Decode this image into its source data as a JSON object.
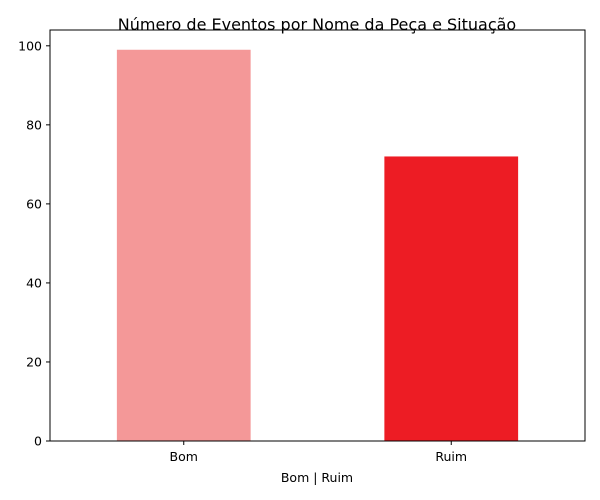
{
  "chart_data": {
    "type": "bar",
    "title": "Número de Eventos por Nome da Peça e Situação",
    "xlabel": "Bom | Ruim",
    "ylabel": "",
    "categories": [
      "Bom",
      "Ruim"
    ],
    "values": [
      99,
      72
    ],
    "colors": [
      "#f49898",
      "#ed1c24"
    ],
    "ylim": [
      0,
      104
    ],
    "yticks": [
      0,
      20,
      40,
      60,
      80,
      100
    ],
    "grid": false,
    "legend": "none"
  }
}
